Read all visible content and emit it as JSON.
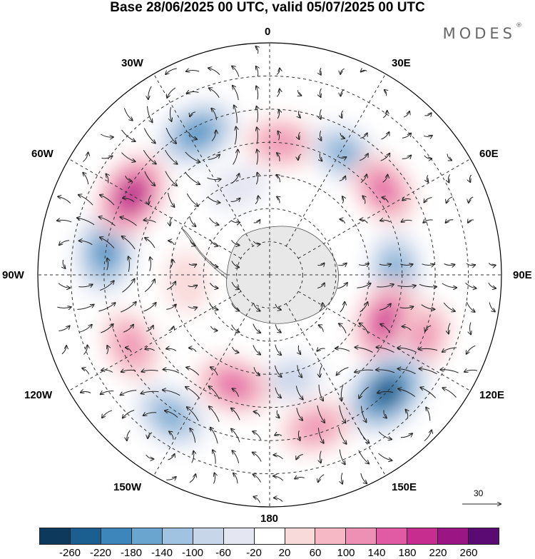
{
  "title": "Base 28/06/2025 00 UTC, valid 05/07/2025 00 UTC",
  "brand": "MODES",
  "brand_mark": "®",
  "longitude_labels": {
    "lon_0": "0",
    "lon_30e": "30E",
    "lon_60e": "60E",
    "lon_90e": "90E",
    "lon_120e": "120E",
    "lon_150e": "150E",
    "lon_180": "180",
    "lon_150w": "150W",
    "lon_120w": "120W",
    "lon_90w": "90W",
    "lon_60w": "60W",
    "lon_30w": "30W"
  },
  "reference_vector": {
    "label": "30"
  },
  "colorbar": {
    "colors": [
      "#0d3a5c",
      "#1a5f8f",
      "#3c86bb",
      "#6aa5d0",
      "#9fc3e0",
      "#c8d6ea",
      "#e4e6f2",
      "#ffffff",
      "#f9dada",
      "#f5b8c4",
      "#ee8fb4",
      "#e05ba3",
      "#c72d8f",
      "#9b1584",
      "#5b0a74"
    ],
    "ticks": [
      "-260",
      "-220",
      "-180",
      "-140",
      "-100",
      "-60",
      "-20",
      "20",
      "60",
      "100",
      "140",
      "180",
      "220",
      "260"
    ]
  },
  "anomaly_centers": [
    {
      "lat": -50,
      "lon": 5,
      "value": 130
    },
    {
      "lat": -47,
      "lon": 32,
      "value": -140
    },
    {
      "lat": -47,
      "lon": 53,
      "value": 150
    },
    {
      "lat": -52,
      "lon": 88,
      "value": -160
    },
    {
      "lat": -52,
      "lon": 112,
      "value": 210
    },
    {
      "lat": -40,
      "lon": 112,
      "value": 130
    },
    {
      "lat": -40,
      "lon": 135,
      "value": -260
    },
    {
      "lat": -42,
      "lon": 163,
      "value": 130
    },
    {
      "lat": -58,
      "lon": 168,
      "value": -70
    },
    {
      "lat": -55,
      "lon": -162,
      "value": 160
    },
    {
      "lat": -38,
      "lon": -145,
      "value": -150
    },
    {
      "lat": -43,
      "lon": -117,
      "value": 130
    },
    {
      "lat": -40,
      "lon": -82,
      "value": -200
    },
    {
      "lat": -42,
      "lon": -60,
      "value": 220
    },
    {
      "lat": -42,
      "lon": -27,
      "value": -190
    },
    {
      "lat": -62,
      "lon": -20,
      "value": -40
    },
    {
      "lat": -65,
      "lon": -95,
      "value": 50
    }
  ]
}
